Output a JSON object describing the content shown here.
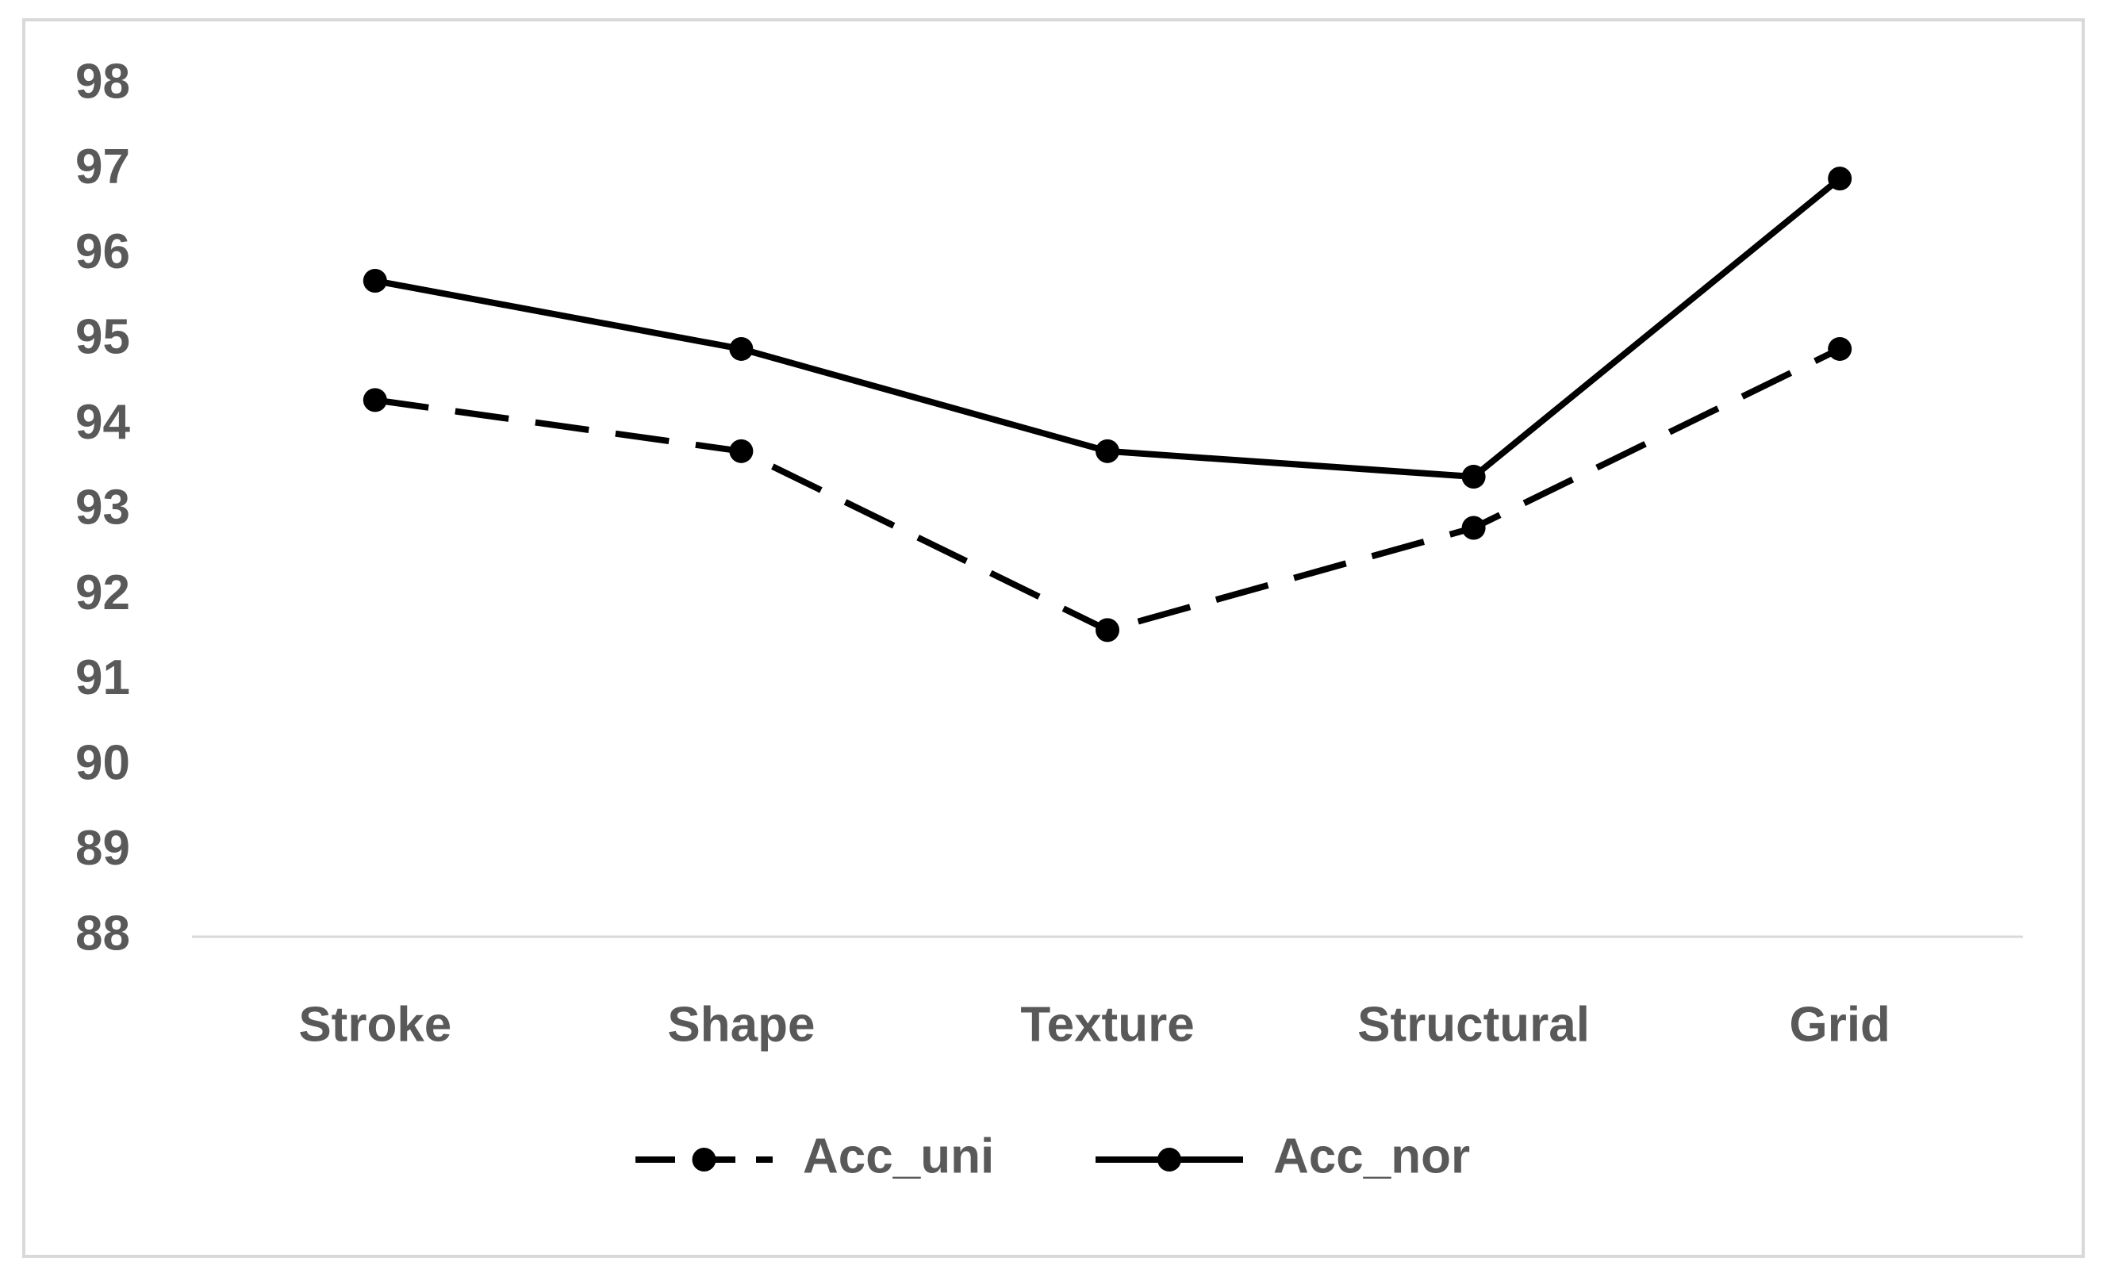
{
  "chart_data": {
    "type": "line",
    "categories": [
      "Stroke",
      "Shape",
      "Texture",
      "Structural",
      "Grid"
    ],
    "series": [
      {
        "name": "Acc_uni",
        "color": "#000000",
        "dash": true,
        "values": [
          94.3,
          93.7,
          91.6,
          92.8,
          94.9
        ]
      },
      {
        "name": "Acc_nor",
        "color": "#000000",
        "dash": false,
        "values": [
          95.7,
          94.9,
          93.7,
          93.4,
          96.9
        ]
      }
    ],
    "ylim": [
      88,
      98
    ],
    "yticks": [
      88,
      89,
      90,
      91,
      92,
      93,
      94,
      95,
      96,
      97,
      98
    ],
    "grid": false,
    "legend": "bottom"
  }
}
